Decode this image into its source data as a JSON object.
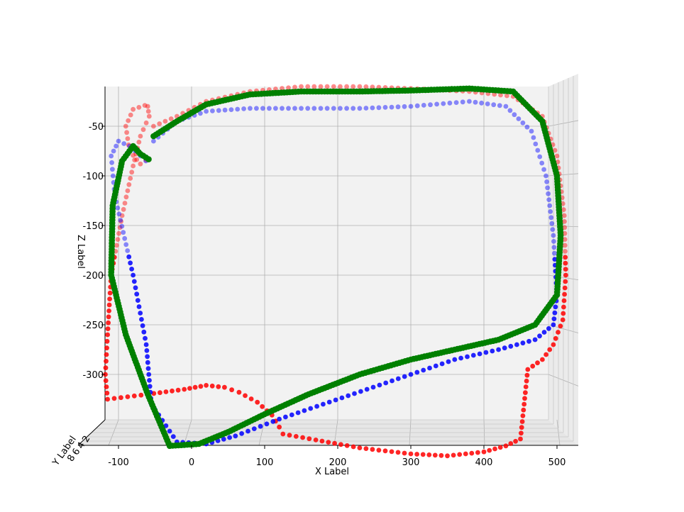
{
  "chart_data": {
    "type": "scatter",
    "projection": "3d",
    "title": "",
    "xlabel": "X Label",
    "ylabel": "Y Label",
    "zlabel": "Z Label",
    "xlim": [
      -130,
      525
    ],
    "zlim": [
      -370,
      -20
    ],
    "grid": true,
    "legend": "none",
    "x_ticks": [
      "-100",
      "0",
      "100",
      "200",
      "300",
      "400",
      "500"
    ],
    "z_ticks": [
      "-50",
      "-100",
      "-150",
      "-200",
      "-250",
      "-300"
    ],
    "y_ticks": [
      "8",
      "6",
      "4",
      "2"
    ],
    "series": [
      {
        "color": "#ff0000",
        "marker": "circle",
        "x": [
          -52,
          -20,
          20,
          80,
          150,
          230,
          300,
          380,
          440,
          480,
          500,
          510,
          512,
          508,
          495,
          480,
          460,
          455,
          450,
          430,
          400,
          350,
          300,
          230,
          170,
          125,
          120,
          110,
          90,
          65,
          45,
          20,
          -10,
          -60,
          -115,
          -118,
          -115,
          -110,
          -95,
          -80,
          -70,
          -58,
          -60,
          -64,
          -80,
          -90,
          -85,
          -70,
          -55
        ],
        "z": [
          -50,
          -40,
          -25,
          -15,
          -10,
          -10,
          -12,
          -15,
          -20,
          -40,
          -80,
          -140,
          -200,
          -245,
          -270,
          -285,
          -295,
          -330,
          -365,
          -372,
          -378,
          -382,
          -380,
          -374,
          -366,
          -360,
          -353,
          -341,
          -328,
          -318,
          -313,
          -311,
          -315,
          -320,
          -325,
          -300,
          -260,
          -200,
          -140,
          -90,
          -60,
          -40,
          -30,
          -29,
          -33,
          -50,
          -75,
          -88,
          -80
        ]
      },
      {
        "color": "#0000ff",
        "marker": "circle",
        "x": [
          -52,
          -20,
          20,
          80,
          150,
          230,
          300,
          380,
          430,
          465,
          485,
          495,
          500,
          495,
          470,
          420,
          360,
          300,
          240,
          180,
          120,
          60,
          20,
          -20,
          -55,
          -62,
          -80,
          -105,
          -110,
          -100,
          -85,
          -70,
          -55
        ],
        "z": [
          -65,
          -45,
          -35,
          -32,
          -32,
          -32,
          -30,
          -25,
          -30,
          -55,
          -100,
          -160,
          -220,
          -250,
          -265,
          -275,
          -285,
          -300,
          -315,
          -330,
          -345,
          -362,
          -370,
          -368,
          -330,
          -270,
          -200,
          -120,
          -80,
          -65,
          -70,
          -80,
          -90
        ]
      },
      {
        "color": "#008000",
        "marker": "circle",
        "x": [
          -52,
          -20,
          20,
          80,
          150,
          230,
          300,
          380,
          440,
          480,
          500,
          505,
          500,
          470,
          420,
          360,
          300,
          230,
          160,
          100,
          50,
          10,
          -30,
          -60,
          -90,
          -110,
          -108,
          -95,
          -80,
          -70,
          -55
        ],
        "z": [
          -60,
          -45,
          -28,
          -18,
          -15,
          -15,
          -14,
          -12,
          -15,
          -45,
          -100,
          -160,
          -220,
          -250,
          -265,
          -275,
          -285,
          -300,
          -320,
          -340,
          -358,
          -370,
          -372,
          -320,
          -260,
          -200,
          -130,
          -85,
          -70,
          -78,
          -85
        ]
      }
    ]
  }
}
